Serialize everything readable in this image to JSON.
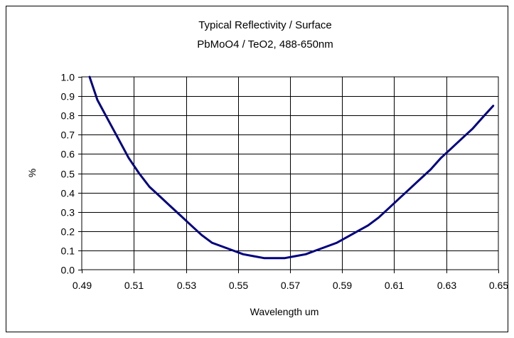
{
  "chart_data": {
    "type": "line",
    "title": "Typical Reflectivity / Surface",
    "subtitle": "PbMoO4 / TeO2,  488-650nm",
    "xlabel": "Wavelength um",
    "ylabel": "%",
    "xlim": [
      0.49,
      0.65
    ],
    "ylim": [
      0.0,
      1.0
    ],
    "x_ticks": [
      "0.49",
      "0.51",
      "0.53",
      "0.55",
      "0.57",
      "0.59",
      "0.61",
      "0.63",
      "0.65"
    ],
    "y_ticks": [
      "0.0",
      "0.1",
      "0.2",
      "0.3",
      "0.4",
      "0.5",
      "0.6",
      "0.7",
      "0.8",
      "0.9",
      "1.0"
    ],
    "grid": true,
    "legend": false,
    "series": [
      {
        "color": "#000080",
        "x": [
          0.493,
          0.496,
          0.5,
          0.504,
          0.508,
          0.512,
          0.516,
          0.52,
          0.524,
          0.528,
          0.532,
          0.536,
          0.54,
          0.544,
          0.548,
          0.552,
          0.556,
          0.56,
          0.564,
          0.568,
          0.572,
          0.576,
          0.58,
          0.584,
          0.588,
          0.592,
          0.596,
          0.6,
          0.604,
          0.608,
          0.612,
          0.616,
          0.62,
          0.624,
          0.628,
          0.632,
          0.636,
          0.64,
          0.644,
          0.648
        ],
        "y": [
          1.0,
          0.88,
          0.78,
          0.68,
          0.58,
          0.5,
          0.43,
          0.38,
          0.33,
          0.28,
          0.23,
          0.18,
          0.14,
          0.12,
          0.1,
          0.08,
          0.07,
          0.06,
          0.06,
          0.06,
          0.07,
          0.08,
          0.1,
          0.12,
          0.14,
          0.17,
          0.2,
          0.23,
          0.27,
          0.32,
          0.37,
          0.42,
          0.47,
          0.52,
          0.58,
          0.63,
          0.68,
          0.73,
          0.79,
          0.85
        ]
      }
    ]
  }
}
